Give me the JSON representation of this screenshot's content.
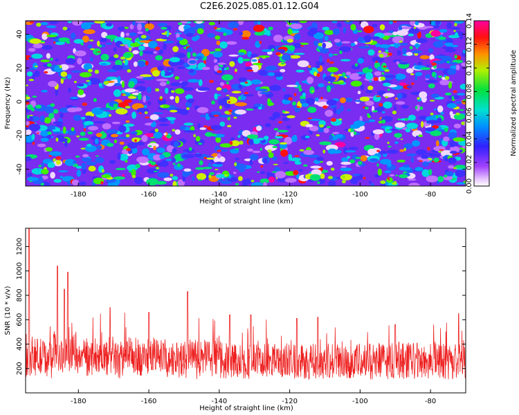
{
  "title": "C2E6.2025.085.01.12.G04",
  "chart_data": [
    {
      "type": "heatmap",
      "xlabel": "Height of straight line (km)",
      "ylabel": "Frequency (Hz)",
      "xlim": [
        -195,
        -70
      ],
      "ylim": [
        -50,
        48
      ],
      "x_ticks": [
        -180,
        -160,
        -140,
        -120,
        -100,
        -80
      ],
      "y_ticks": [
        -40,
        -20,
        0,
        20,
        40
      ],
      "colorbar": {
        "label": "Normalized spectral amplitude",
        "range": [
          0,
          0.14
        ],
        "ticks": [
          0.0,
          0.02,
          0.04,
          0.06,
          0.08,
          0.1,
          0.12,
          0.14
        ],
        "tick_labels": [
          "0.00",
          "0.02",
          "0.04",
          "0.06",
          "0.08",
          "0.10",
          "0.12",
          "0.14"
        ],
        "colormap": "rainbow (white-violet-blue-cyan-green-yellow-red-magenta)"
      },
      "grid": false
    },
    {
      "type": "line",
      "xlabel": "Height of straight line (km)",
      "ylabel": "SNR (10 * v/v)",
      "xlim": [
        -195,
        -70
      ],
      "ylim": [
        0,
        1350
      ],
      "x_ticks": [
        -180,
        -160,
        -140,
        -120,
        -100,
        -80
      ],
      "y_ticks": [
        200,
        400,
        600,
        800,
        1000,
        1200
      ],
      "line_color": "#ee2020",
      "grid": false,
      "peaks": [
        {
          "x": -194,
          "y": 1350
        },
        {
          "x": -186,
          "y": 1040
        },
        {
          "x": -184,
          "y": 850
        },
        {
          "x": -183,
          "y": 990
        },
        {
          "x": -171,
          "y": 700
        },
        {
          "x": -160,
          "y": 660
        },
        {
          "x": -149,
          "y": 830
        },
        {
          "x": -137,
          "y": 640
        },
        {
          "x": -131,
          "y": 640
        },
        {
          "x": -118,
          "y": 610
        },
        {
          "x": -112,
          "y": 620
        },
        {
          "x": -90,
          "y": 560
        },
        {
          "x": -72,
          "y": 650
        }
      ],
      "baseline_mean": 260,
      "baseline_spread": 150
    }
  ]
}
